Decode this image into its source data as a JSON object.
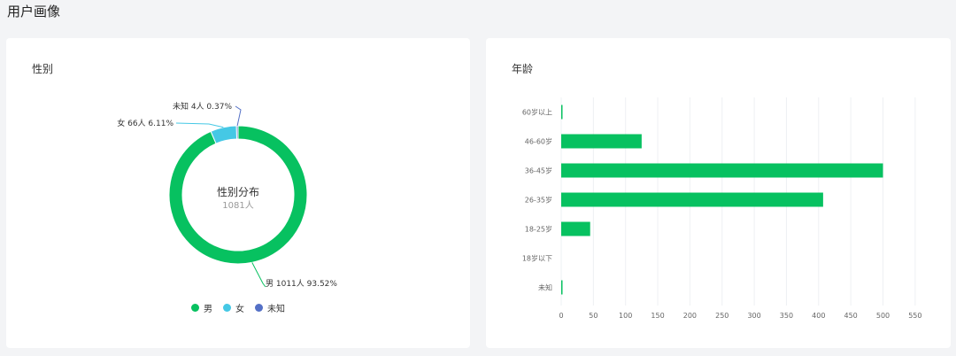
{
  "page": {
    "title": "用户画像"
  },
  "colors": {
    "male": "#07c160",
    "female": "#45c8e5",
    "unknown": "#5470c6",
    "grid": "#eef0f3"
  },
  "gender_card": {
    "title": "性别"
  },
  "age_card": {
    "title": "年龄"
  },
  "chart_data": [
    {
      "type": "pie",
      "variant": "donut",
      "center_title": "性别分布",
      "center_subtitle": "1081人",
      "slices": [
        {
          "name": "男",
          "count": 1011,
          "percent": 93.52,
          "label": "男 1011人 93.52%"
        },
        {
          "name": "女",
          "count": 66,
          "percent": 6.11,
          "label": "女 66人 6.11%"
        },
        {
          "name": "未知",
          "count": 4,
          "percent": 0.37,
          "label": "未知 4人 0.37%"
        }
      ],
      "legend": [
        "男",
        "女",
        "未知"
      ],
      "legend_position": "bottom-center"
    },
    {
      "type": "bar",
      "orientation": "horizontal",
      "categories": [
        "60岁以上",
        "46-60岁",
        "36-45岁",
        "26-35岁",
        "18-25岁",
        "18岁以下",
        "未知"
      ],
      "values": [
        2,
        125,
        500,
        407,
        45,
        0,
        2
      ],
      "xlim": [
        0,
        550
      ],
      "xticks": [
        "0",
        "50",
        "100",
        "150",
        "200",
        "250",
        "300",
        "350",
        "400",
        "450",
        "500",
        "550"
      ],
      "grid": true
    }
  ]
}
